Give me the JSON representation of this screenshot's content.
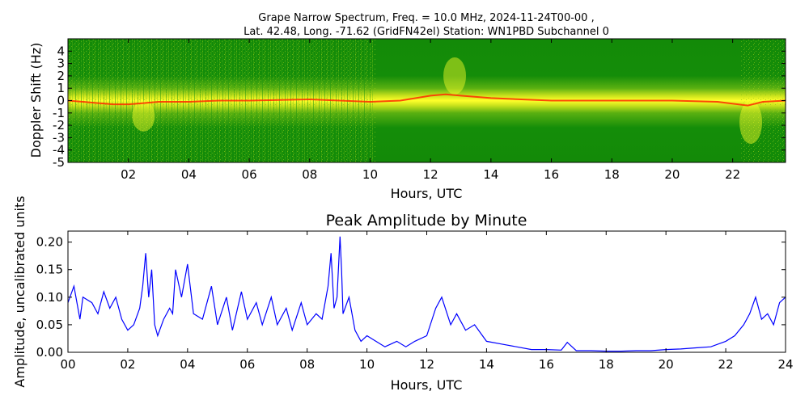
{
  "figure": {
    "title_line1": "Grape Narrow Spectrum, Freq. = 10.0 MHz, 2024-11-24T00-00 ,",
    "title_line2": "Lat.  42.48, Long. -71.62 (GridFN42el) Station: WN1PBD Subchannel 0"
  },
  "chart_data": [
    {
      "type": "heatmap",
      "title": "",
      "xlabel": "Hours, UTC",
      "ylabel": "Doppler Shift (Hz)",
      "xlim": [
        0,
        23.75
      ],
      "ylim": [
        -5,
        5
      ],
      "x_ticks": [
        2,
        4,
        6,
        8,
        10,
        12,
        14,
        16,
        18,
        20,
        22
      ],
      "x_tick_labels": [
        "02",
        "04",
        "06",
        "08",
        "10",
        "12",
        "14",
        "16",
        "18",
        "20",
        "22"
      ],
      "y_ticks": [
        -5,
        -4,
        -3,
        -2,
        -1,
        0,
        1,
        2,
        3,
        4
      ],
      "y_tick_labels": [
        "-5",
        "-4",
        "-3",
        "-2",
        "-1",
        "0",
        "1",
        "2",
        "3",
        "4"
      ],
      "colors": {
        "background": "#138a08",
        "mid": "#b5d816",
        "high": "#ffff2a",
        "peak": "#ff2a00"
      },
      "doppler_trace": [
        [
          0,
          0.0
        ],
        [
          0.5,
          -0.1
        ],
        [
          1.0,
          -0.2
        ],
        [
          1.5,
          -0.3
        ],
        [
          2.0,
          -0.3
        ],
        [
          2.5,
          -0.2
        ],
        [
          3.0,
          -0.1
        ],
        [
          4.0,
          -0.1
        ],
        [
          5.0,
          0.0
        ],
        [
          6.0,
          0.0
        ],
        [
          7.0,
          0.05
        ],
        [
          8.0,
          0.1
        ],
        [
          9.0,
          0.0
        ],
        [
          10.0,
          -0.1
        ],
        [
          11.0,
          0.0
        ],
        [
          12.0,
          0.4
        ],
        [
          12.5,
          0.5
        ],
        [
          13.0,
          0.4
        ],
        [
          14.0,
          0.2
        ],
        [
          15.0,
          0.1
        ],
        [
          16.0,
          0.0
        ],
        [
          18.0,
          0.0
        ],
        [
          20.0,
          0.0
        ],
        [
          21.5,
          -0.1
        ],
        [
          22.5,
          -0.4
        ],
        [
          23.0,
          -0.1
        ],
        [
          23.75,
          0.0
        ]
      ],
      "features": [
        {
          "x": 12.8,
          "y_from": 0.5,
          "y_to": 3.5,
          "label": ""
        },
        {
          "x": 22.6,
          "y_from": -3.5,
          "y_to": 0.0,
          "label": ""
        },
        {
          "x": 2.5,
          "y_from": -2.5,
          "y_to": 0.0,
          "label": ""
        }
      ]
    },
    {
      "type": "line",
      "title": "Peak Amplitude by Minute",
      "xlabel": "Hours, UTC",
      "ylabel": "Amplitude, uncalibrated units",
      "xlim": [
        0,
        24
      ],
      "ylim": [
        0,
        0.22
      ],
      "x_ticks": [
        0,
        2,
        4,
        6,
        8,
        10,
        12,
        14,
        16,
        18,
        20,
        22,
        24
      ],
      "x_tick_labels": [
        "00",
        "02",
        "04",
        "06",
        "08",
        "10",
        "12",
        "14",
        "16",
        "18",
        "20",
        "22",
        "24"
      ],
      "y_ticks": [
        0,
        0.05,
        0.1,
        0.15,
        0.2
      ],
      "y_tick_labels": [
        "0.00",
        "0.05",
        "0.10",
        "0.15",
        "0.20"
      ],
      "color": "#0000ff",
      "series": [
        {
          "x": [
            0,
            0.2,
            0.4,
            0.5,
            0.8,
            1.0,
            1.2,
            1.4,
            1.6,
            1.8,
            2.0,
            2.2,
            2.4,
            2.5,
            2.6,
            2.7,
            2.8,
            2.9,
            3.0,
            3.2,
            3.4,
            3.5,
            3.6,
            3.8,
            4.0,
            4.2,
            4.5,
            4.8,
            5.0,
            5.3,
            5.5,
            5.8,
            6.0,
            6.3,
            6.5,
            6.8,
            7.0,
            7.3,
            7.5,
            7.8,
            8.0,
            8.3,
            8.5,
            8.7,
            8.8,
            8.9,
            9.0,
            9.1,
            9.15,
            9.2,
            9.4,
            9.6,
            9.8,
            10.0,
            10.3,
            10.6,
            11.0,
            11.3,
            11.6,
            12.0,
            12.3,
            12.5,
            12.8,
            13.0,
            13.3,
            13.6,
            14.0,
            14.5,
            15.0,
            15.5,
            16.0,
            16.5,
            16.7,
            17.0,
            17.5,
            18.0,
            18.5,
            19.0,
            19.5,
            20.0,
            20.5,
            21.0,
            21.5,
            22.0,
            22.3,
            22.6,
            22.8,
            23.0,
            23.2,
            23.4,
            23.6,
            23.8,
            24.0
          ],
          "y": [
            0.09,
            0.12,
            0.06,
            0.1,
            0.09,
            0.07,
            0.11,
            0.08,
            0.1,
            0.06,
            0.04,
            0.05,
            0.08,
            0.12,
            0.18,
            0.1,
            0.15,
            0.05,
            0.03,
            0.06,
            0.08,
            0.07,
            0.15,
            0.1,
            0.16,
            0.07,
            0.06,
            0.12,
            0.05,
            0.1,
            0.04,
            0.11,
            0.06,
            0.09,
            0.05,
            0.1,
            0.05,
            0.08,
            0.04,
            0.09,
            0.05,
            0.07,
            0.06,
            0.12,
            0.18,
            0.08,
            0.1,
            0.21,
            0.15,
            0.07,
            0.1,
            0.04,
            0.02,
            0.03,
            0.02,
            0.01,
            0.02,
            0.01,
            0.02,
            0.03,
            0.08,
            0.1,
            0.05,
            0.07,
            0.04,
            0.05,
            0.02,
            0.015,
            0.01,
            0.005,
            0.005,
            0.004,
            0.018,
            0.003,
            0.003,
            0.002,
            0.002,
            0.003,
            0.003,
            0.005,
            0.006,
            0.008,
            0.01,
            0.02,
            0.03,
            0.05,
            0.07,
            0.1,
            0.06,
            0.07,
            0.05,
            0.09,
            0.1
          ]
        }
      ]
    }
  ]
}
